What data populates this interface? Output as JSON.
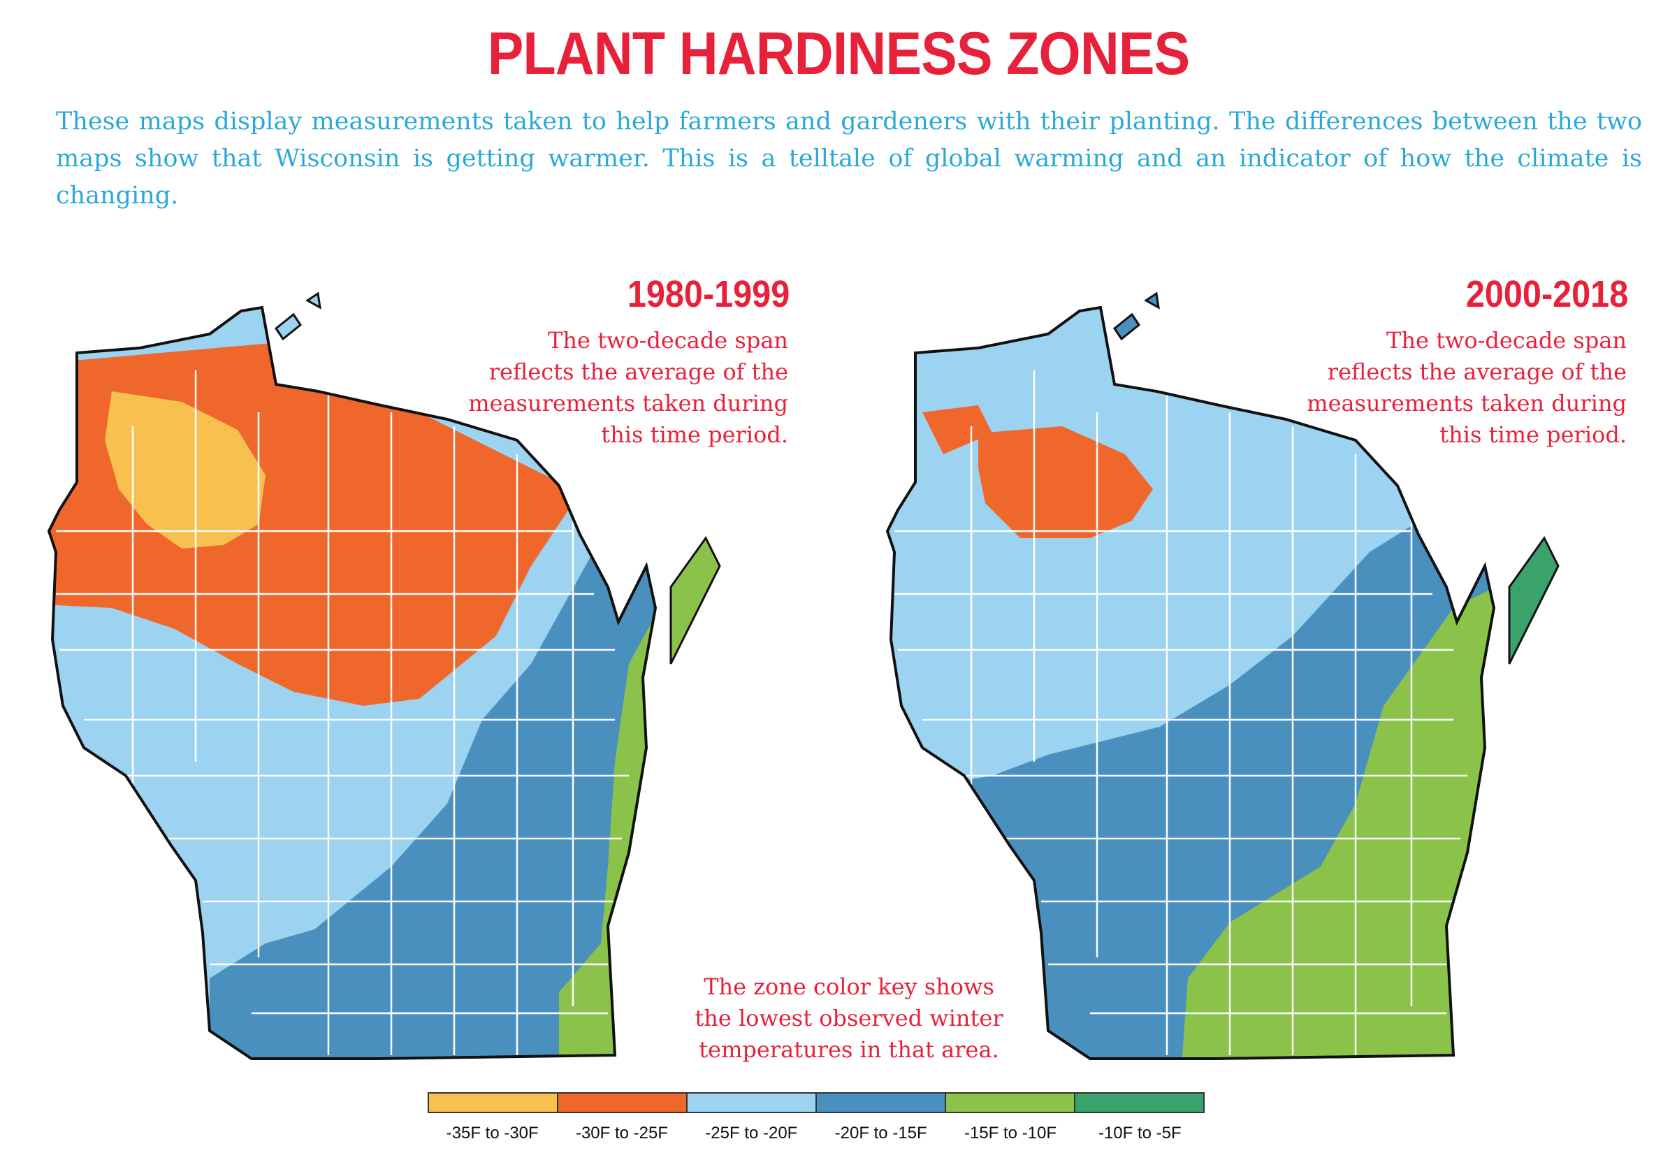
{
  "title": "PLANT HARDINESS ZONES",
  "intro": "These maps display measurements taken to help farmers and gardeners with their planting. The differences between the two maps show that Wisconsin is getting warmer. This is a telltale of global warming and an indicator of how the climate is changing.",
  "maps": [
    {
      "period": "1980-1999",
      "description": "The two-decade span reflects the average of the measurements taken during this time period.",
      "zones_present": [
        "-35F to -30F",
        "-30F to -25F",
        "-25F to -20F",
        "-20F to -15F",
        "-15F to -10F"
      ]
    },
    {
      "period": "2000-2018",
      "description": "The two-decade span reflects the average of the measurements taken during this time period.",
      "zones_present": [
        "-30F to -25F",
        "-25F to -20F",
        "-20F to -15F",
        "-15F to -10F",
        "-10F to -5F"
      ]
    }
  ],
  "key_note": "The zone color key shows the lowest observed winter temperatures in that area.",
  "legend": [
    {
      "label": "-35F to -30F",
      "color": "#f7c04f"
    },
    {
      "label": "-30F to -25F",
      "color": "#f0672b"
    },
    {
      "label": "-25F to -20F",
      "color": "#9bd3f0"
    },
    {
      "label": "-20F to -15F",
      "color": "#4a90bf"
    },
    {
      "label": "-15F to -10F",
      "color": "#8bc34a"
    },
    {
      "label": "-10F to -5F",
      "color": "#3aa36b"
    }
  ]
}
